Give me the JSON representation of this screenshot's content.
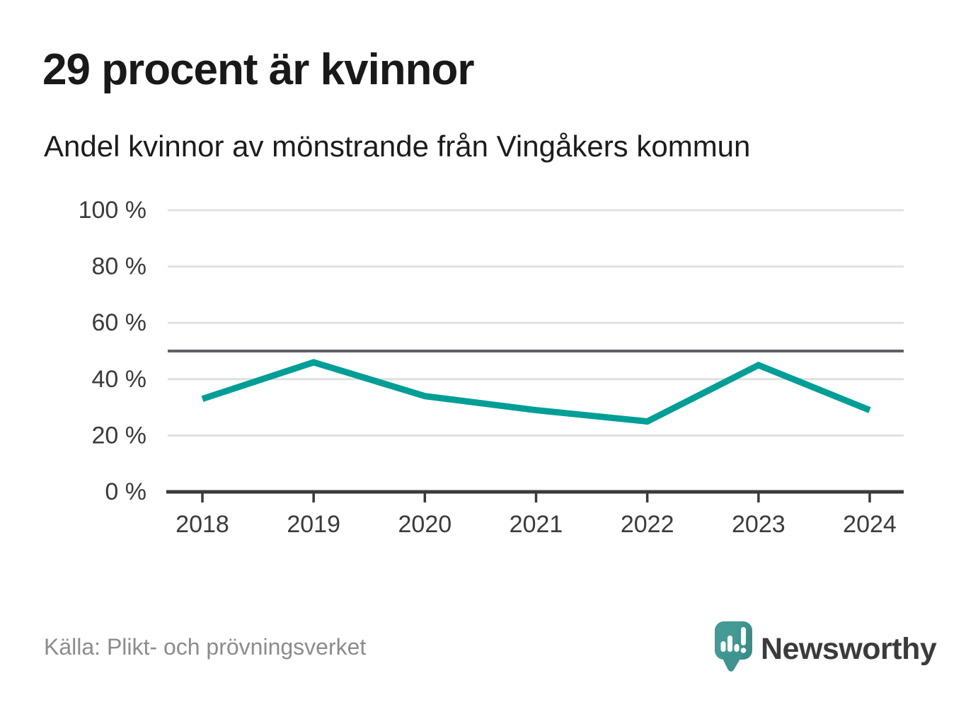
{
  "header": {
    "title": "29 procent är kvinnor",
    "subtitle": "Andel kvinnor av mönstrande från Vingåkers kommun"
  },
  "chart_data": {
    "type": "line",
    "x": [
      "2018",
      "2019",
      "2020",
      "2021",
      "2022",
      "2023",
      "2024"
    ],
    "values": [
      33,
      46,
      34,
      29,
      25,
      45,
      29
    ],
    "unit": "%",
    "title": "29 procent är kvinnor",
    "subtitle": "Andel kvinnor av mönstrande från Vingåkers kommun",
    "xlabel": "",
    "ylabel": "",
    "ylim": [
      0,
      100
    ],
    "yticks": [
      0,
      20,
      40,
      60,
      80,
      100
    ],
    "ytick_labels": [
      "0 %",
      "20 %",
      "40 %",
      "60 %",
      "80 %",
      "100 %"
    ],
    "reference_line": 50,
    "grid": "horizontal",
    "legend": "none",
    "line_color": "#009e96"
  },
  "footer": {
    "source": "Källa: Plikt- och prövningsverket",
    "logo_text": "Newsworthy"
  },
  "colors": {
    "accent_teal": "#009e96",
    "logo_bubble_teal": "#459a95",
    "logo_bubble_dark": "#3a8c87",
    "logo_text_teal": "#3f9d98",
    "grid": "#e0e0e0",
    "reference_line": "#606068",
    "axis": "#3a3a3a",
    "source_gray": "#8c8c8c"
  }
}
